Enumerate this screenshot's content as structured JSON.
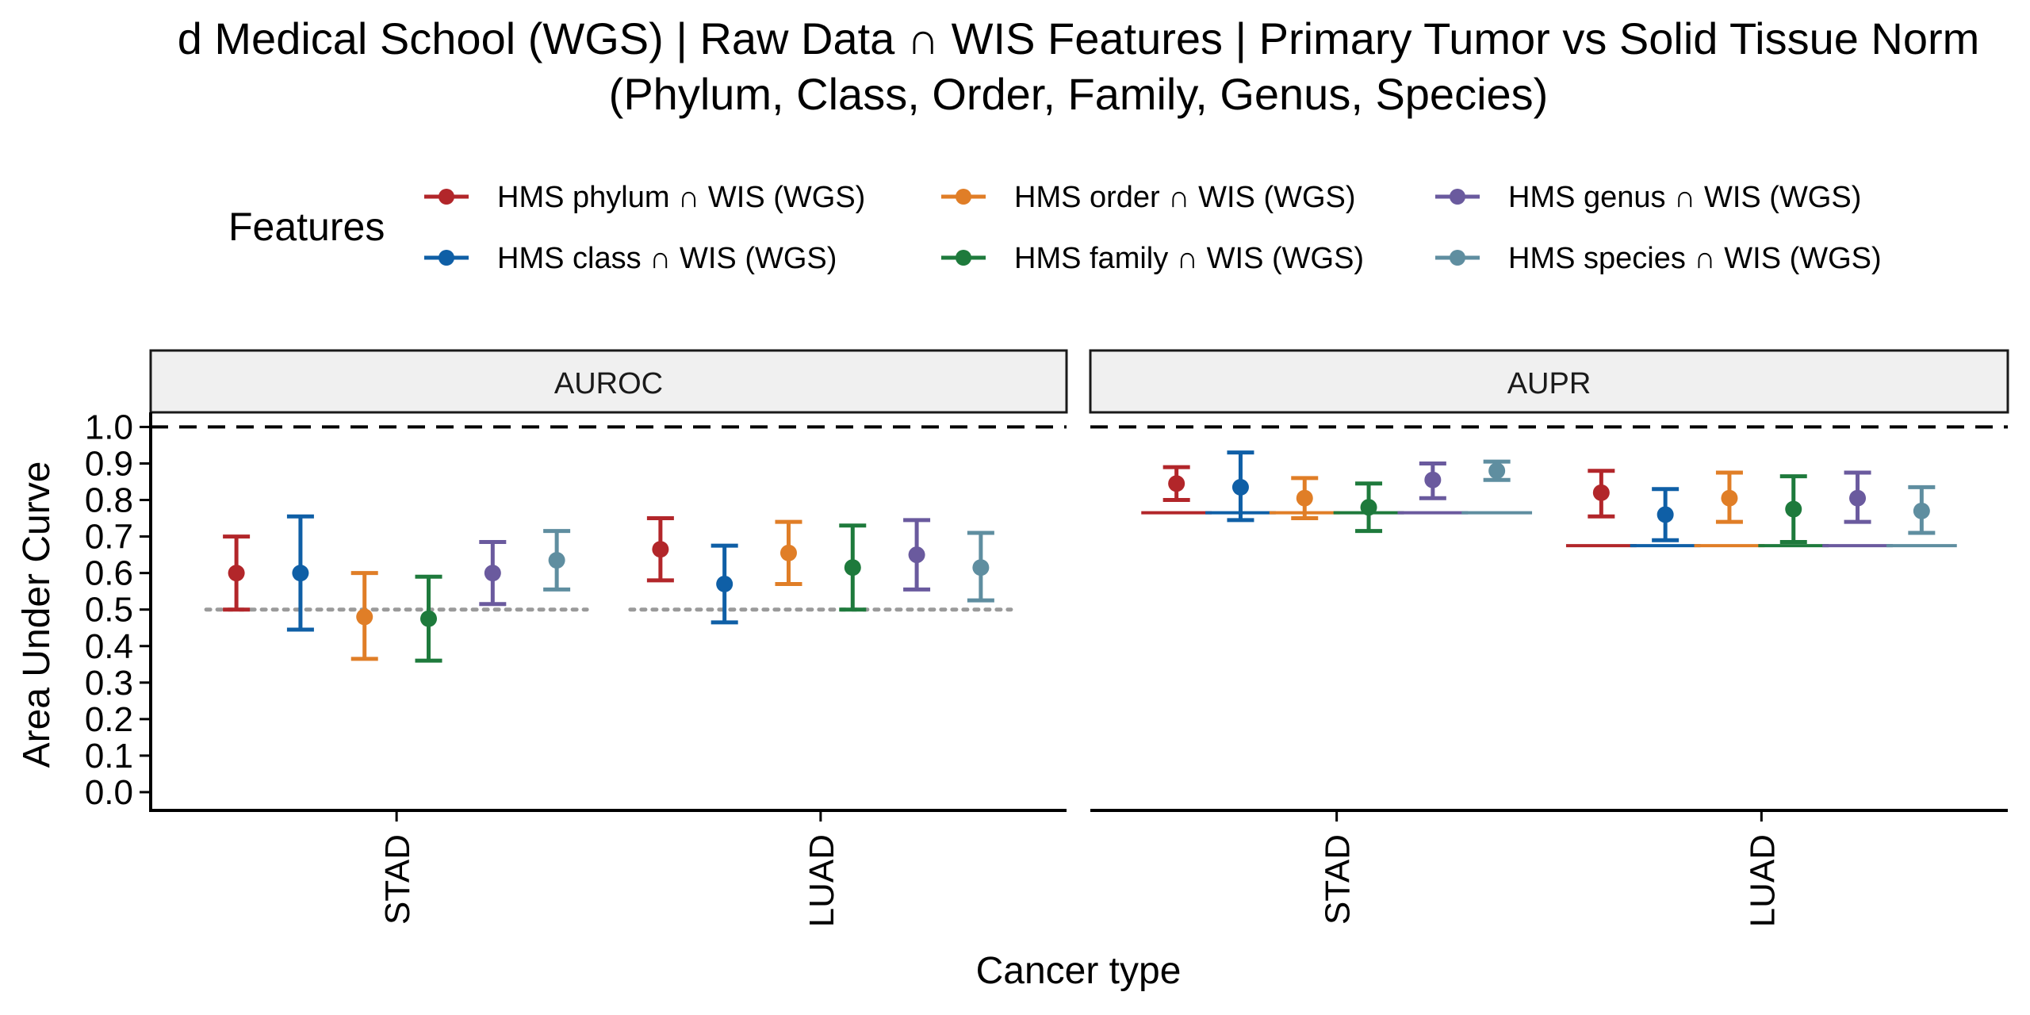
{
  "chart_data": {
    "type": "errorbar",
    "title_line1": "d Medical School (WGS) | Raw Data ∩ WIS Features  | Primary Tumor vs Solid Tissue Norm",
    "title_line2": "(Phylum, Class, Order, Family, Genus, Species)",
    "legend": {
      "title": "Features",
      "placement": "top",
      "entries": [
        {
          "label": "HMS phylum ∩ WIS (WGS)",
          "color": "#B2262A"
        },
        {
          "label": "HMS class ∩ WIS (WGS)",
          "color": "#0F5FA6"
        },
        {
          "label": "HMS order ∩ WIS (WGS)",
          "color": "#E07E27"
        },
        {
          "label": "HMS family ∩ WIS (WGS)",
          "color": "#1E7A3C"
        },
        {
          "label": "HMS genus ∩ WIS (WGS)",
          "color": "#6A5A9E"
        },
        {
          "label": "HMS species ∩ WIS (WGS)",
          "color": "#5F8EA0"
        }
      ]
    },
    "xlabel": "Cancer type",
    "ylabel": "Area Under Curve",
    "ylim": [
      0,
      1.0
    ],
    "yticks": [
      "0.0",
      "0.1",
      "0.2",
      "0.3",
      "0.4",
      "0.5",
      "0.6",
      "0.7",
      "0.8",
      "0.9",
      "1.0"
    ],
    "categories": [
      "STAD",
      "LUAD"
    ],
    "panels": [
      {
        "name": "AUROC",
        "baseline": [
          0.5,
          0.5
        ],
        "series": [
          {
            "name": "HMS phylum ∩ WIS (WGS)",
            "mean": [
              0.6,
              0.665
            ],
            "lower": [
              0.5,
              0.58
            ],
            "upper": [
              0.7,
              0.75
            ]
          },
          {
            "name": "HMS class ∩ WIS (WGS)",
            "mean": [
              0.6,
              0.57
            ],
            "lower": [
              0.445,
              0.465
            ],
            "upper": [
              0.755,
              0.675
            ]
          },
          {
            "name": "HMS order ∩ WIS (WGS)",
            "mean": [
              0.48,
              0.655
            ],
            "lower": [
              0.365,
              0.57
            ],
            "upper": [
              0.6,
              0.74
            ]
          },
          {
            "name": "HMS family ∩ WIS (WGS)",
            "mean": [
              0.475,
              0.615
            ],
            "lower": [
              0.36,
              0.5
            ],
            "upper": [
              0.59,
              0.73
            ]
          },
          {
            "name": "HMS genus ∩ WIS (WGS)",
            "mean": [
              0.6,
              0.65
            ],
            "lower": [
              0.515,
              0.555
            ],
            "upper": [
              0.685,
              0.745
            ]
          },
          {
            "name": "HMS species ∩ WIS (WGS)",
            "mean": [
              0.635,
              0.615
            ],
            "lower": [
              0.555,
              0.525
            ],
            "upper": [
              0.715,
              0.71
            ]
          }
        ]
      },
      {
        "name": "AUPR",
        "baseline": [
          0.765,
          0.675
        ],
        "series": [
          {
            "name": "HMS phylum ∩ WIS (WGS)",
            "mean": [
              0.845,
              0.82
            ],
            "lower": [
              0.8,
              0.755
            ],
            "upper": [
              0.89,
              0.88
            ]
          },
          {
            "name": "HMS class ∩ WIS (WGS)",
            "mean": [
              0.835,
              0.76
            ],
            "lower": [
              0.745,
              0.69
            ],
            "upper": [
              0.93,
              0.83
            ]
          },
          {
            "name": "HMS order ∩ WIS (WGS)",
            "mean": [
              0.805,
              0.805
            ],
            "lower": [
              0.75,
              0.74
            ],
            "upper": [
              0.86,
              0.875
            ]
          },
          {
            "name": "HMS family ∩ WIS (WGS)",
            "mean": [
              0.78,
              0.775
            ],
            "lower": [
              0.715,
              0.685
            ],
            "upper": [
              0.845,
              0.865
            ]
          },
          {
            "name": "HMS genus ∩ WIS (WGS)",
            "mean": [
              0.855,
              0.805
            ],
            "lower": [
              0.805,
              0.74
            ],
            "upper": [
              0.9,
              0.875
            ]
          },
          {
            "name": "HMS species ∩ WIS (WGS)",
            "mean": [
              0.88,
              0.77
            ],
            "lower": [
              0.855,
              0.71
            ],
            "upper": [
              0.905,
              0.835
            ]
          }
        ]
      }
    ],
    "reference_line": 1.0
  }
}
